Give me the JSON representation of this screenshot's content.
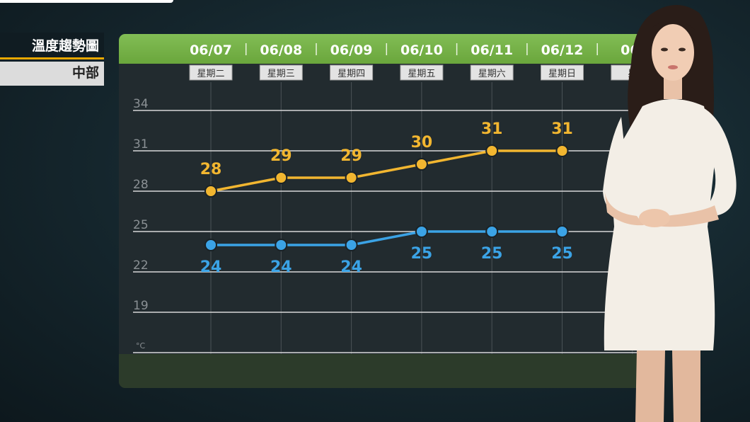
{
  "side_panel": {
    "title": "溫度趨勢圖",
    "region": "中部"
  },
  "colors": {
    "high": "#f2b630",
    "low": "#3ba3e6",
    "header": "#76b347",
    "grid": "#d8d8d8"
  },
  "chart_data": {
    "type": "line",
    "categories": [
      "06/07",
      "06/08",
      "06/09",
      "06/10",
      "06/11",
      "06/12",
      "06/"
    ],
    "weekdays": [
      "星期二",
      "星期三",
      "星期四",
      "星期五",
      "星期六",
      "星期日",
      "星"
    ],
    "series": [
      {
        "values": [
          28,
          29,
          29,
          30,
          31,
          31,
          null
        ]
      },
      {
        "values": [
          24,
          24,
          24,
          25,
          25,
          25,
          null
        ]
      }
    ],
    "yticks": [
      34,
      31,
      28,
      25,
      22,
      19
    ],
    "unit": "°C",
    "ylim": [
      16,
      34
    ],
    "grid": true
  }
}
